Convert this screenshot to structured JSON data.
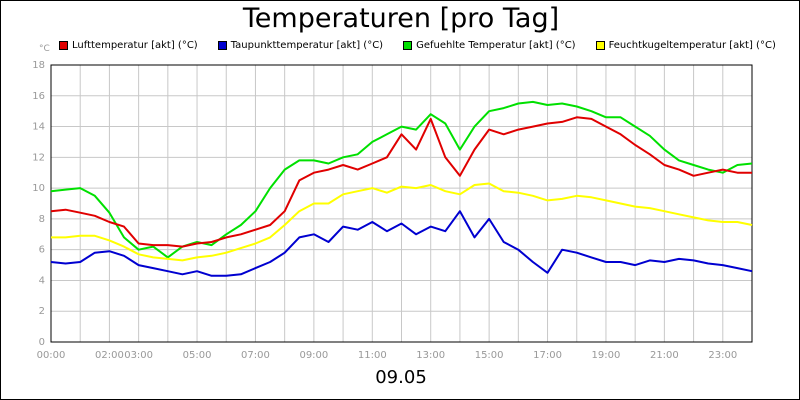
{
  "chart_data": {
    "type": "line",
    "title": "Temperaturen [pro Tag]",
    "y_unit_label": "°C",
    "x_label": "09.05",
    "x_ticks": [
      "00:00",
      "02:00",
      "03:00",
      "05:00",
      "07:00",
      "09:00",
      "11:00",
      "13:00",
      "15:00",
      "17:00",
      "19:00",
      "21:00",
      "23:00"
    ],
    "y_ticks": [
      0,
      2,
      4,
      6,
      8,
      10,
      12,
      14,
      16,
      18
    ],
    "xlim": [
      0,
      24
    ],
    "ylim": [
      0,
      18
    ],
    "grid": true,
    "legend_position": "top",
    "x": [
      0,
      0.5,
      1,
      1.5,
      2,
      2.5,
      3,
      3.5,
      4,
      4.5,
      5,
      5.5,
      6,
      6.5,
      7,
      7.5,
      8,
      8.5,
      9,
      9.5,
      10,
      10.5,
      11,
      11.5,
      12,
      12.5,
      13,
      13.5,
      14,
      14.5,
      15,
      15.5,
      16,
      16.5,
      17,
      17.5,
      18,
      18.5,
      19,
      19.5,
      20,
      20.5,
      21,
      21.5,
      22,
      22.5,
      23,
      23.5,
      24
    ],
    "series": [
      {
        "name": "Lufttemperatur [akt] (°C)",
        "color": "#e00000",
        "values": [
          8.5,
          8.6,
          8.4,
          8.2,
          7.8,
          7.5,
          6.4,
          6.3,
          6.3,
          6.2,
          6.4,
          6.5,
          6.8,
          7.0,
          7.3,
          7.6,
          8.5,
          10.5,
          11.0,
          11.2,
          11.5,
          11.2,
          11.6,
          12.0,
          13.5,
          12.5,
          14.5,
          12.0,
          10.8,
          12.5,
          13.8,
          13.5,
          13.8,
          14.0,
          14.2,
          14.3,
          14.6,
          14.5,
          14.0,
          13.5,
          12.8,
          12.2,
          11.5,
          11.2,
          10.8,
          11.0,
          11.2,
          11.0,
          11.0
        ]
      },
      {
        "name": "Taupunkttemperatur [akt] (°C)",
        "color": "#0000d0",
        "values": [
          5.2,
          5.1,
          5.2,
          5.8,
          5.9,
          5.6,
          5.0,
          4.8,
          4.6,
          4.4,
          4.6,
          4.3,
          4.3,
          4.4,
          4.8,
          5.2,
          5.8,
          6.8,
          7.0,
          6.5,
          7.5,
          7.3,
          7.8,
          7.2,
          7.7,
          7.0,
          7.5,
          7.2,
          8.5,
          6.8,
          8.0,
          6.5,
          6.0,
          5.2,
          4.5,
          6.0,
          5.8,
          5.5,
          5.2,
          5.2,
          5.0,
          5.3,
          5.2,
          5.4,
          5.3,
          5.1,
          5.0,
          4.8,
          4.6
        ]
      },
      {
        "name": "Gefuehlte Temperatur [akt] (°C)",
        "color": "#00e000",
        "values": [
          9.8,
          9.9,
          10.0,
          9.5,
          8.4,
          6.8,
          6.0,
          6.2,
          5.5,
          6.2,
          6.5,
          6.3,
          7.0,
          7.6,
          8.5,
          10.0,
          11.2,
          11.8,
          11.8,
          11.6,
          12.0,
          12.2,
          13.0,
          13.5,
          14.0,
          13.8,
          14.8,
          14.2,
          12.5,
          14.0,
          15.0,
          15.2,
          15.5,
          15.6,
          15.4,
          15.5,
          15.3,
          15.0,
          14.6,
          14.6,
          14.0,
          13.4,
          12.5,
          11.8,
          11.5,
          11.2,
          11.0,
          11.5,
          11.6
        ]
      },
      {
        "name": "Feuchtkugeltemperatur [akt] (°C)",
        "color": "#ffff00",
        "values": [
          6.8,
          6.8,
          6.9,
          6.9,
          6.6,
          6.2,
          5.7,
          5.5,
          5.4,
          5.3,
          5.5,
          5.6,
          5.8,
          6.1,
          6.4,
          6.8,
          7.6,
          8.5,
          9.0,
          9.0,
          9.6,
          9.8,
          10.0,
          9.7,
          10.1,
          10.0,
          10.2,
          9.8,
          9.6,
          10.2,
          10.3,
          9.8,
          9.7,
          9.5,
          9.2,
          9.3,
          9.5,
          9.4,
          9.2,
          9.0,
          8.8,
          8.7,
          8.5,
          8.3,
          8.1,
          7.9,
          7.8,
          7.8,
          7.6
        ]
      }
    ]
  }
}
